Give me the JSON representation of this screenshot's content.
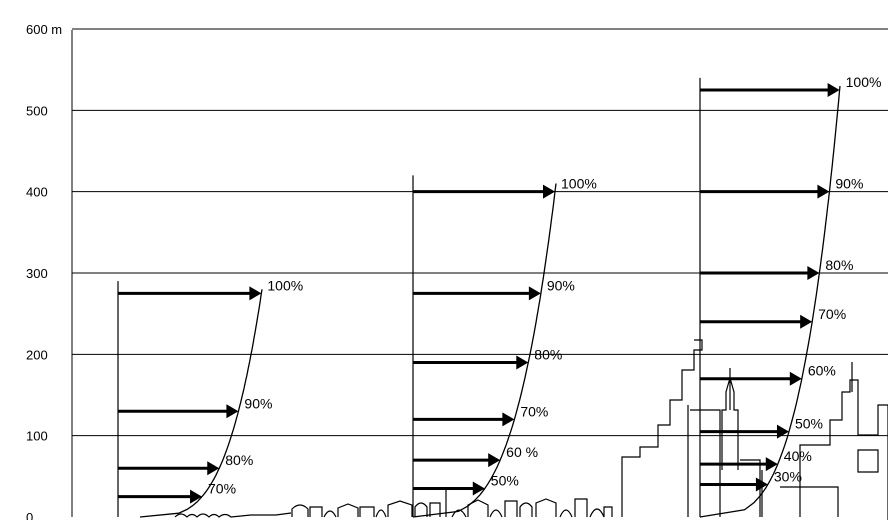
{
  "y_axis": {
    "unit": "m",
    "ticks": [
      {
        "value": 0,
        "label": "0"
      },
      {
        "value": 100,
        "label": "100"
      },
      {
        "value": 200,
        "label": "200"
      },
      {
        "value": 300,
        "label": "300"
      },
      {
        "value": 400,
        "label": "400"
      },
      {
        "value": 500,
        "label": "500"
      },
      {
        "value": 600,
        "label": "600 m"
      }
    ]
  },
  "profiles": [
    {
      "terrain": "open country",
      "gradient_height_m": 280,
      "arrows": [
        {
          "height_m": 25,
          "percent": 70,
          "label": "70%"
        },
        {
          "height_m": 60,
          "percent": 80,
          "label": "80%"
        },
        {
          "height_m": 130,
          "percent": 90,
          "label": "90%"
        },
        {
          "height_m": 275,
          "percent": 100,
          "label": "100%"
        }
      ]
    },
    {
      "terrain": "suburban",
      "gradient_height_m": 410,
      "arrows": [
        {
          "height_m": 35,
          "percent": 50,
          "label": "50%"
        },
        {
          "height_m": 70,
          "percent": 60,
          "label": "60 %"
        },
        {
          "height_m": 120,
          "percent": 70,
          "label": "70%"
        },
        {
          "height_m": 190,
          "percent": 80,
          "label": "80%"
        },
        {
          "height_m": 275,
          "percent": 90,
          "label": "90%"
        },
        {
          "height_m": 400,
          "percent": 100,
          "label": "100%"
        }
      ]
    },
    {
      "terrain": "city centre",
      "gradient_height_m": 530,
      "arrows": [
        {
          "height_m": 40,
          "percent": 30,
          "label": "30%"
        },
        {
          "height_m": 65,
          "percent": 40,
          "label": "40%"
        },
        {
          "height_m": 105,
          "percent": 50,
          "label": "50%"
        },
        {
          "height_m": 170,
          "percent": 60,
          "label": "60%"
        },
        {
          "height_m": 240,
          "percent": 70,
          "label": "70%"
        },
        {
          "height_m": 300,
          "percent": 80,
          "label": "80%"
        },
        {
          "height_m": 400,
          "percent": 90,
          "label": "90%"
        },
        {
          "height_m": 525,
          "percent": 100,
          "label": "100%"
        }
      ]
    }
  ]
}
